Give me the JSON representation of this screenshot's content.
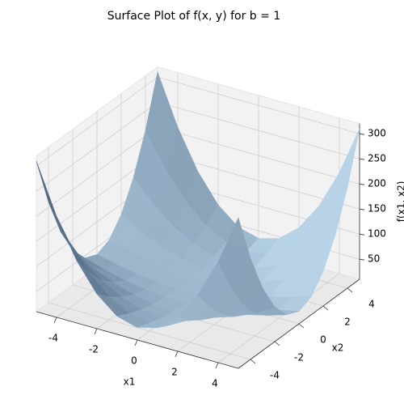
{
  "chart_data": {
    "type": "surface",
    "title": "Surface Plot of f(x, y) for b = 1",
    "xlabel": "x1",
    "ylabel": "x2",
    "zlabel": "f(x1, x2)",
    "x": [
      -5,
      -4,
      -3,
      -2,
      -1,
      0,
      1,
      2,
      3,
      4,
      5
    ],
    "y": [
      -5,
      -4,
      -3,
      -2,
      -1,
      0,
      1,
      2,
      3,
      4,
      5
    ],
    "z": [
      [
        310,
        211,
        134,
        79,
        46,
        35,
        46,
        79,
        134,
        211,
        310
      ],
      [
        211,
        144.4,
        92.6,
        55.6,
        33.4,
        26,
        33.4,
        55.6,
        92.6,
        144.4,
        211
      ],
      [
        134,
        92.6,
        60.4,
        37.4,
        23.6,
        19,
        23.6,
        37.4,
        60.4,
        92.6,
        134
      ],
      [
        79,
        55.6,
        37.4,
        24.4,
        16.6,
        14,
        16.6,
        24.4,
        37.4,
        55.6,
        79
      ],
      [
        46,
        33.4,
        23.6,
        16.6,
        12.4,
        11,
        12.4,
        16.6,
        23.6,
        33.4,
        46
      ],
      [
        35,
        26,
        19,
        14,
        11,
        10,
        11,
        14,
        19,
        26,
        35
      ],
      [
        46,
        33.4,
        23.6,
        16.6,
        12.4,
        11,
        12.4,
        16.6,
        23.6,
        33.4,
        46
      ],
      [
        79,
        55.6,
        37.4,
        24.4,
        16.6,
        14,
        16.6,
        24.4,
        37.4,
        55.6,
        79
      ],
      [
        134,
        92.6,
        60.4,
        37.4,
        23.6,
        19,
        23.6,
        37.4,
        60.4,
        92.6,
        134
      ],
      [
        211,
        144.4,
        92.6,
        55.6,
        33.4,
        26,
        33.4,
        55.6,
        92.6,
        144.4,
        211
      ],
      [
        310,
        211,
        134,
        79,
        46,
        35,
        46,
        79,
        134,
        211,
        310
      ]
    ],
    "xlim": [
      -5,
      5
    ],
    "ylim": [
      -5,
      5
    ],
    "zlim": [
      10,
      320
    ],
    "xticks": [
      -4,
      -2,
      0,
      2,
      4
    ],
    "yticks": [
      -4,
      -2,
      0,
      2,
      4
    ],
    "zticks": [
      50,
      100,
      150,
      200,
      250,
      300
    ],
    "color": "#1f77b4",
    "grid": true
  }
}
